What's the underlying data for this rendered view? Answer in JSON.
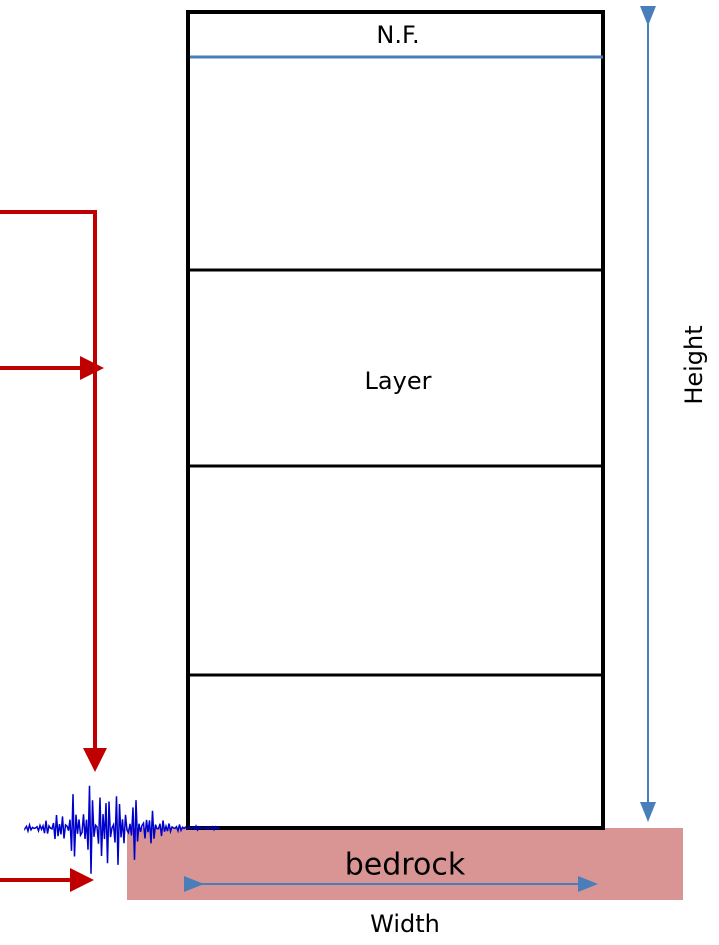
{
  "nodes": {
    "water_table": "N.F.",
    "layer": "Layer",
    "bedrock": "bedrock"
  },
  "dimensions": {
    "height": "Height",
    "width": "Width"
  }
}
